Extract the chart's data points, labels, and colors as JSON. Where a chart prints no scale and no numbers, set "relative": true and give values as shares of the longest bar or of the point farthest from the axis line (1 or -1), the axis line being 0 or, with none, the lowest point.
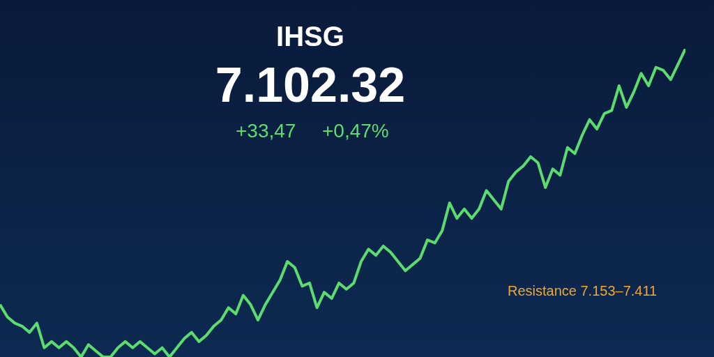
{
  "chart_data": {
    "type": "line",
    "title": "IHSG",
    "subtitle": "7.102.32",
    "relative": true,
    "categories": [
      null,
      null,
      null,
      null,
      null,
      null,
      null,
      null,
      null,
      null,
      null,
      null,
      null,
      null,
      null,
      null,
      null,
      null,
      null,
      null,
      null,
      null,
      null,
      null,
      null,
      null,
      null,
      null,
      null,
      null,
      null,
      null,
      null,
      null,
      null,
      null,
      null,
      null,
      null,
      null,
      null,
      null,
      null,
      null,
      null,
      null,
      null,
      null,
      null,
      null,
      null,
      null,
      null,
      null,
      null,
      null,
      null,
      null,
      null,
      null,
      null,
      null,
      null,
      null,
      null,
      null,
      null,
      null,
      null,
      null,
      null,
      null,
      null,
      null,
      null,
      null,
      null,
      null,
      null,
      null,
      null,
      null,
      null,
      null,
      null,
      null,
      null,
      null,
      null,
      null,
      null,
      null,
      null,
      null
    ],
    "series": [
      {
        "color": "#5ddc6e",
        "values": [
          0.17,
          0.13,
          0.11,
          0.1,
          0.08,
          0.11,
          0.03,
          0.05,
          0.03,
          0.05,
          0.03,
          0,
          0.04,
          0.02,
          0,
          0.0,
          0.03,
          0.05,
          0.03,
          0.05,
          0.03,
          0.01,
          0.03,
          0,
          0.03,
          0.06,
          0.08,
          0.05,
          0.07,
          0.1,
          0.12,
          0.16,
          0.14,
          0.2,
          0.17,
          0.12,
          0.17,
          0.21,
          0.25,
          0.31,
          0.29,
          0.23,
          0.24,
          0.16,
          0.21,
          0.19,
          0.24,
          0.22,
          0.24,
          0.31,
          0.35,
          0.33,
          0.36,
          0.34,
          0.31,
          0.28,
          0.3,
          0.32,
          0.38,
          0.37,
          0.41,
          0.5,
          0.45,
          0.48,
          0.45,
          0.48,
          0.54,
          0.51,
          0.48,
          0.57,
          0.6,
          0.62,
          0.65,
          0.63,
          0.55,
          0.61,
          0.59,
          0.68,
          0.66,
          0.72,
          0.77,
          0.74,
          0.79,
          0.8,
          0.88,
          0.81,
          0.86,
          0.92,
          0.88,
          0.94,
          0.93,
          0.9,
          0.95,
          1
        ]
      }
    ],
    "annotations": [
      "+33,47",
      "+0,47%",
      "Resistance 7.153–7.411"
    ],
    "line_style": "solid",
    "marker": "none"
  }
}
